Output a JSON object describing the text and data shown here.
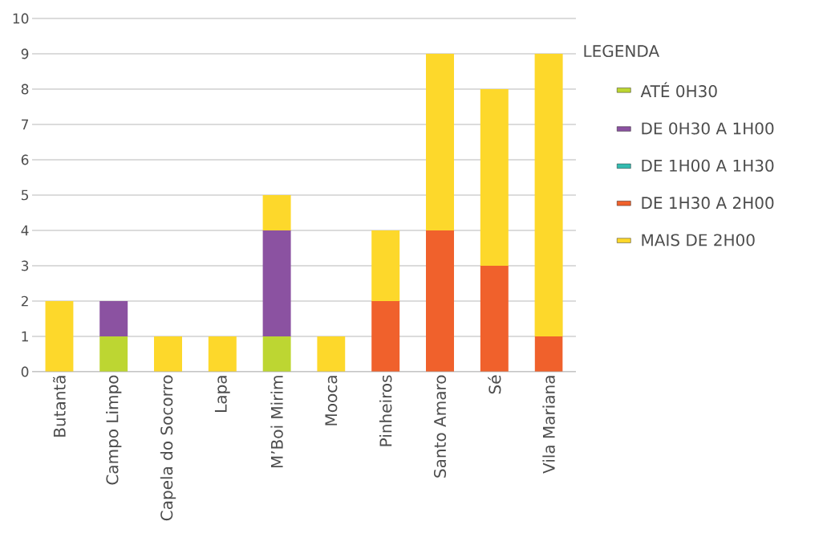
{
  "chart_data": {
    "type": "bar",
    "stacked": true,
    "legend_title": "LEGENDA",
    "categories": [
      "Butantã",
      "Campo Limpo",
      "Capela do Socorro",
      "Lapa",
      "M’Boi Mirim",
      "Mooca",
      "Pinheiros",
      "Santo Amaro",
      "Sé",
      "Vila Mariana"
    ],
    "series": [
      {
        "name": "ATÉ 0H30",
        "color": "#bdd632",
        "values": [
          0,
          1,
          0,
          0,
          1,
          0,
          0,
          0,
          0,
          0
        ]
      },
      {
        "name": "DE 0H30 A 1H00",
        "color": "#8b52a1",
        "values": [
          0,
          1,
          0,
          0,
          3,
          0,
          0,
          0,
          0,
          0
        ]
      },
      {
        "name": "DE 1H00 A 1H30",
        "color": "#33bbb0",
        "values": [
          0,
          0,
          0,
          0,
          0,
          0,
          0,
          0,
          0,
          0
        ]
      },
      {
        "name": "DE 1H30 A 2H00",
        "color": "#f0612c",
        "values": [
          0,
          0,
          0,
          0,
          0,
          0,
          2,
          4,
          3,
          1
        ]
      },
      {
        "name": "MAIS DE 2H00",
        "color": "#fdd82b",
        "values": [
          2,
          0,
          1,
          1,
          1,
          1,
          2,
          5,
          5,
          8
        ]
      }
    ],
    "ylim": [
      0,
      10
    ],
    "yticks": [
      0,
      1,
      2,
      3,
      4,
      5,
      6,
      7,
      8,
      9,
      10
    ],
    "grid": "y",
    "legend": "right"
  }
}
